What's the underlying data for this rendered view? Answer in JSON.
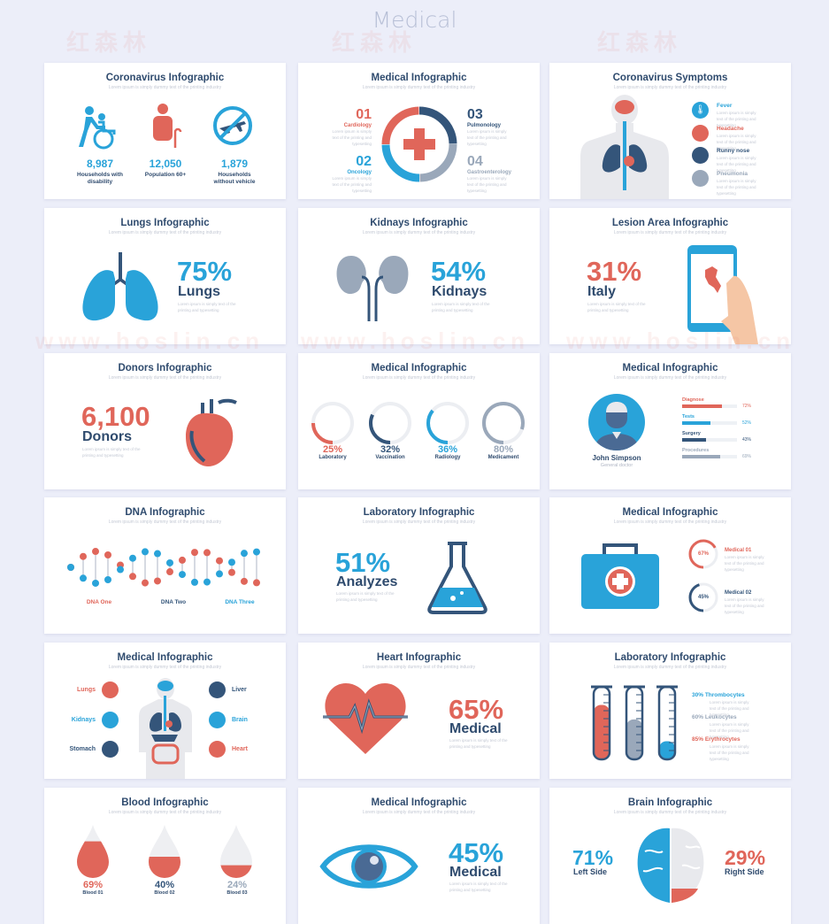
{
  "page_title": "Medical",
  "watermark": {
    "cn": "红森林",
    "url": "www.hoslin.cn"
  },
  "colors": {
    "red": "#e0665a",
    "blue": "#29a3d9",
    "navy": "#34557a",
    "gray": "#9aa8ba",
    "background": "#eceef9"
  },
  "subtitle": "Lorem ipsum is simply dummy text of the printing industry",
  "desc": "Lorem ipsum is simply text of the printing and typesetting",
  "cards": [
    {
      "title": "Coronavirus Infographic",
      "stats": [
        {
          "value": "8,987",
          "label": "Households with disability",
          "icon": "wheelchair-icon"
        },
        {
          "value": "12,050",
          "label": "Population 60+",
          "icon": "elderly-person-icon"
        },
        {
          "value": "1,879",
          "label": "Households without vehicle",
          "icon": "no-plane-icon"
        }
      ]
    },
    {
      "title": "Medical Infographic",
      "items": [
        {
          "num": "01",
          "label": "Cardiology"
        },
        {
          "num": "02",
          "label": "Oncology"
        },
        {
          "num": "03",
          "label": "Pulmonology"
        },
        {
          "num": "04",
          "label": "Gastroenterology"
        }
      ]
    },
    {
      "title": "Coronavirus Symptoms",
      "items": [
        {
          "label": "Fever",
          "icon": "thermometer-icon"
        },
        {
          "label": "Headache",
          "icon": "brain-icon"
        },
        {
          "label": "Runny nose",
          "icon": "nose-icon"
        },
        {
          "label": "Pneumonia",
          "icon": "lungs-icon"
        }
      ]
    },
    {
      "title": "Lungs Infographic",
      "value": "75%",
      "label": "Lungs"
    },
    {
      "title": "Kidnays Infographic",
      "value": "54%",
      "label": "Kidnays"
    },
    {
      "title": "Lesion Area Infographic",
      "value": "31%",
      "label": "Italy"
    },
    {
      "title": "Donors Infographic",
      "value": "6,100",
      "label": "Donors"
    },
    {
      "title": "Medical Infographic",
      "rings": [
        {
          "value": "25%",
          "pct": 25,
          "label": "Laboratory",
          "color": "#e0665a"
        },
        {
          "value": "32%",
          "pct": 32,
          "label": "Vaccination",
          "color": "#34557a"
        },
        {
          "value": "36%",
          "pct": 36,
          "label": "Radiology",
          "color": "#29a3d9"
        },
        {
          "value": "80%",
          "pct": 80,
          "label": "Medicament",
          "color": "#9aa8ba"
        }
      ]
    },
    {
      "title": "Medical Infographic",
      "name": "John Simpson",
      "role": "General doctor",
      "bars": [
        {
          "label": "Diagnose",
          "value": "72%",
          "pct": 72,
          "color": "#e0665a"
        },
        {
          "label": "Tests",
          "value": "52%",
          "pct": 52,
          "color": "#29a3d9"
        },
        {
          "label": "Surgery",
          "value": "43%",
          "pct": 43,
          "color": "#34557a"
        },
        {
          "label": "Procedures",
          "value": "69%",
          "pct": 69,
          "color": "#9aa8ba"
        }
      ]
    },
    {
      "title": "DNA Infographic",
      "labels": [
        "DNA One",
        "DNA Two",
        "DNA Three"
      ]
    },
    {
      "title": "Laboratory Infographic",
      "value": "51%",
      "label": "Analyzes"
    },
    {
      "title": "Medical Infographic",
      "rings": [
        {
          "value": "67%",
          "pct": 67,
          "label": "Medical 01",
          "color": "#e0665a"
        },
        {
          "value": "45%",
          "pct": 45,
          "label": "Medical 02",
          "color": "#34557a"
        }
      ]
    },
    {
      "title": "Medical Infographic",
      "left": [
        "Lungs",
        "Kidnays",
        "Stomach"
      ],
      "right": [
        "Liver",
        "Brain",
        "Heart"
      ]
    },
    {
      "title": "Heart Infographic",
      "value": "65%",
      "label": "Medical"
    },
    {
      "title": "Laboratory Infographic",
      "items": [
        {
          "value": "30%",
          "label": "Thrombocytes",
          "fill": 75
        },
        {
          "value": "60%",
          "label": "Leukocytes",
          "fill": 55
        },
        {
          "value": "85%",
          "label": "Erythrocytes",
          "fill": 25
        }
      ]
    },
    {
      "title": "Blood Infographic",
      "drops": [
        {
          "value": "69%",
          "label": "Blood 01",
          "pct": 69
        },
        {
          "value": "40%",
          "label": "Blood 02",
          "pct": 40
        },
        {
          "value": "24%",
          "label": "Blood 03",
          "pct": 24
        }
      ]
    },
    {
      "title": "Medical Infographic",
      "value": "45%",
      "label": "Medical"
    },
    {
      "title": "Brain Infographic",
      "left": {
        "value": "71%",
        "label": "Left Side"
      },
      "right": {
        "value": "29%",
        "label": "Right Side"
      }
    }
  ]
}
